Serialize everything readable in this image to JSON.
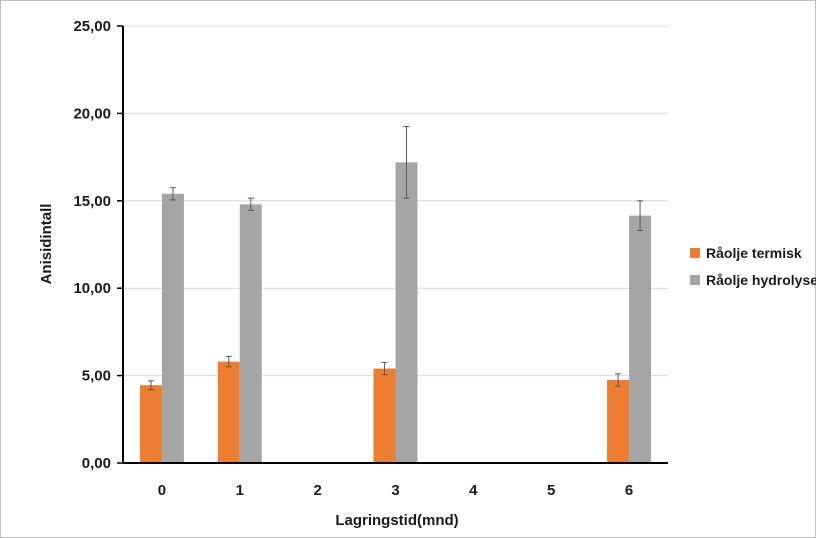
{
  "chart_data": {
    "type": "bar",
    "categories": [
      "0",
      "1",
      "2",
      "3",
      "4",
      "5",
      "6"
    ],
    "series": [
      {
        "name": "Råolje termisk",
        "color": "#ED7D31",
        "values": [
          4.45,
          5.8,
          null,
          5.4,
          null,
          null,
          4.75
        ],
        "errors": [
          0.25,
          0.3,
          null,
          0.35,
          null,
          null,
          0.35
        ]
      },
      {
        "name": "Råolje hydrolyse",
        "color": "#A5A5A5",
        "values": [
          15.4,
          14.8,
          null,
          17.2,
          null,
          null,
          14.15
        ],
        "errors": [
          0.35,
          0.35,
          null,
          2.05,
          null,
          null,
          0.85
        ]
      }
    ],
    "xlabel": "Lagringstid(mnd)",
    "ylabel": "Anisidintall",
    "ylim": [
      0,
      25
    ],
    "yticks": [
      "0,00",
      "5,00",
      "10,00",
      "15,00",
      "20,00",
      "25,00"
    ],
    "grid": true,
    "legend": "right"
  }
}
